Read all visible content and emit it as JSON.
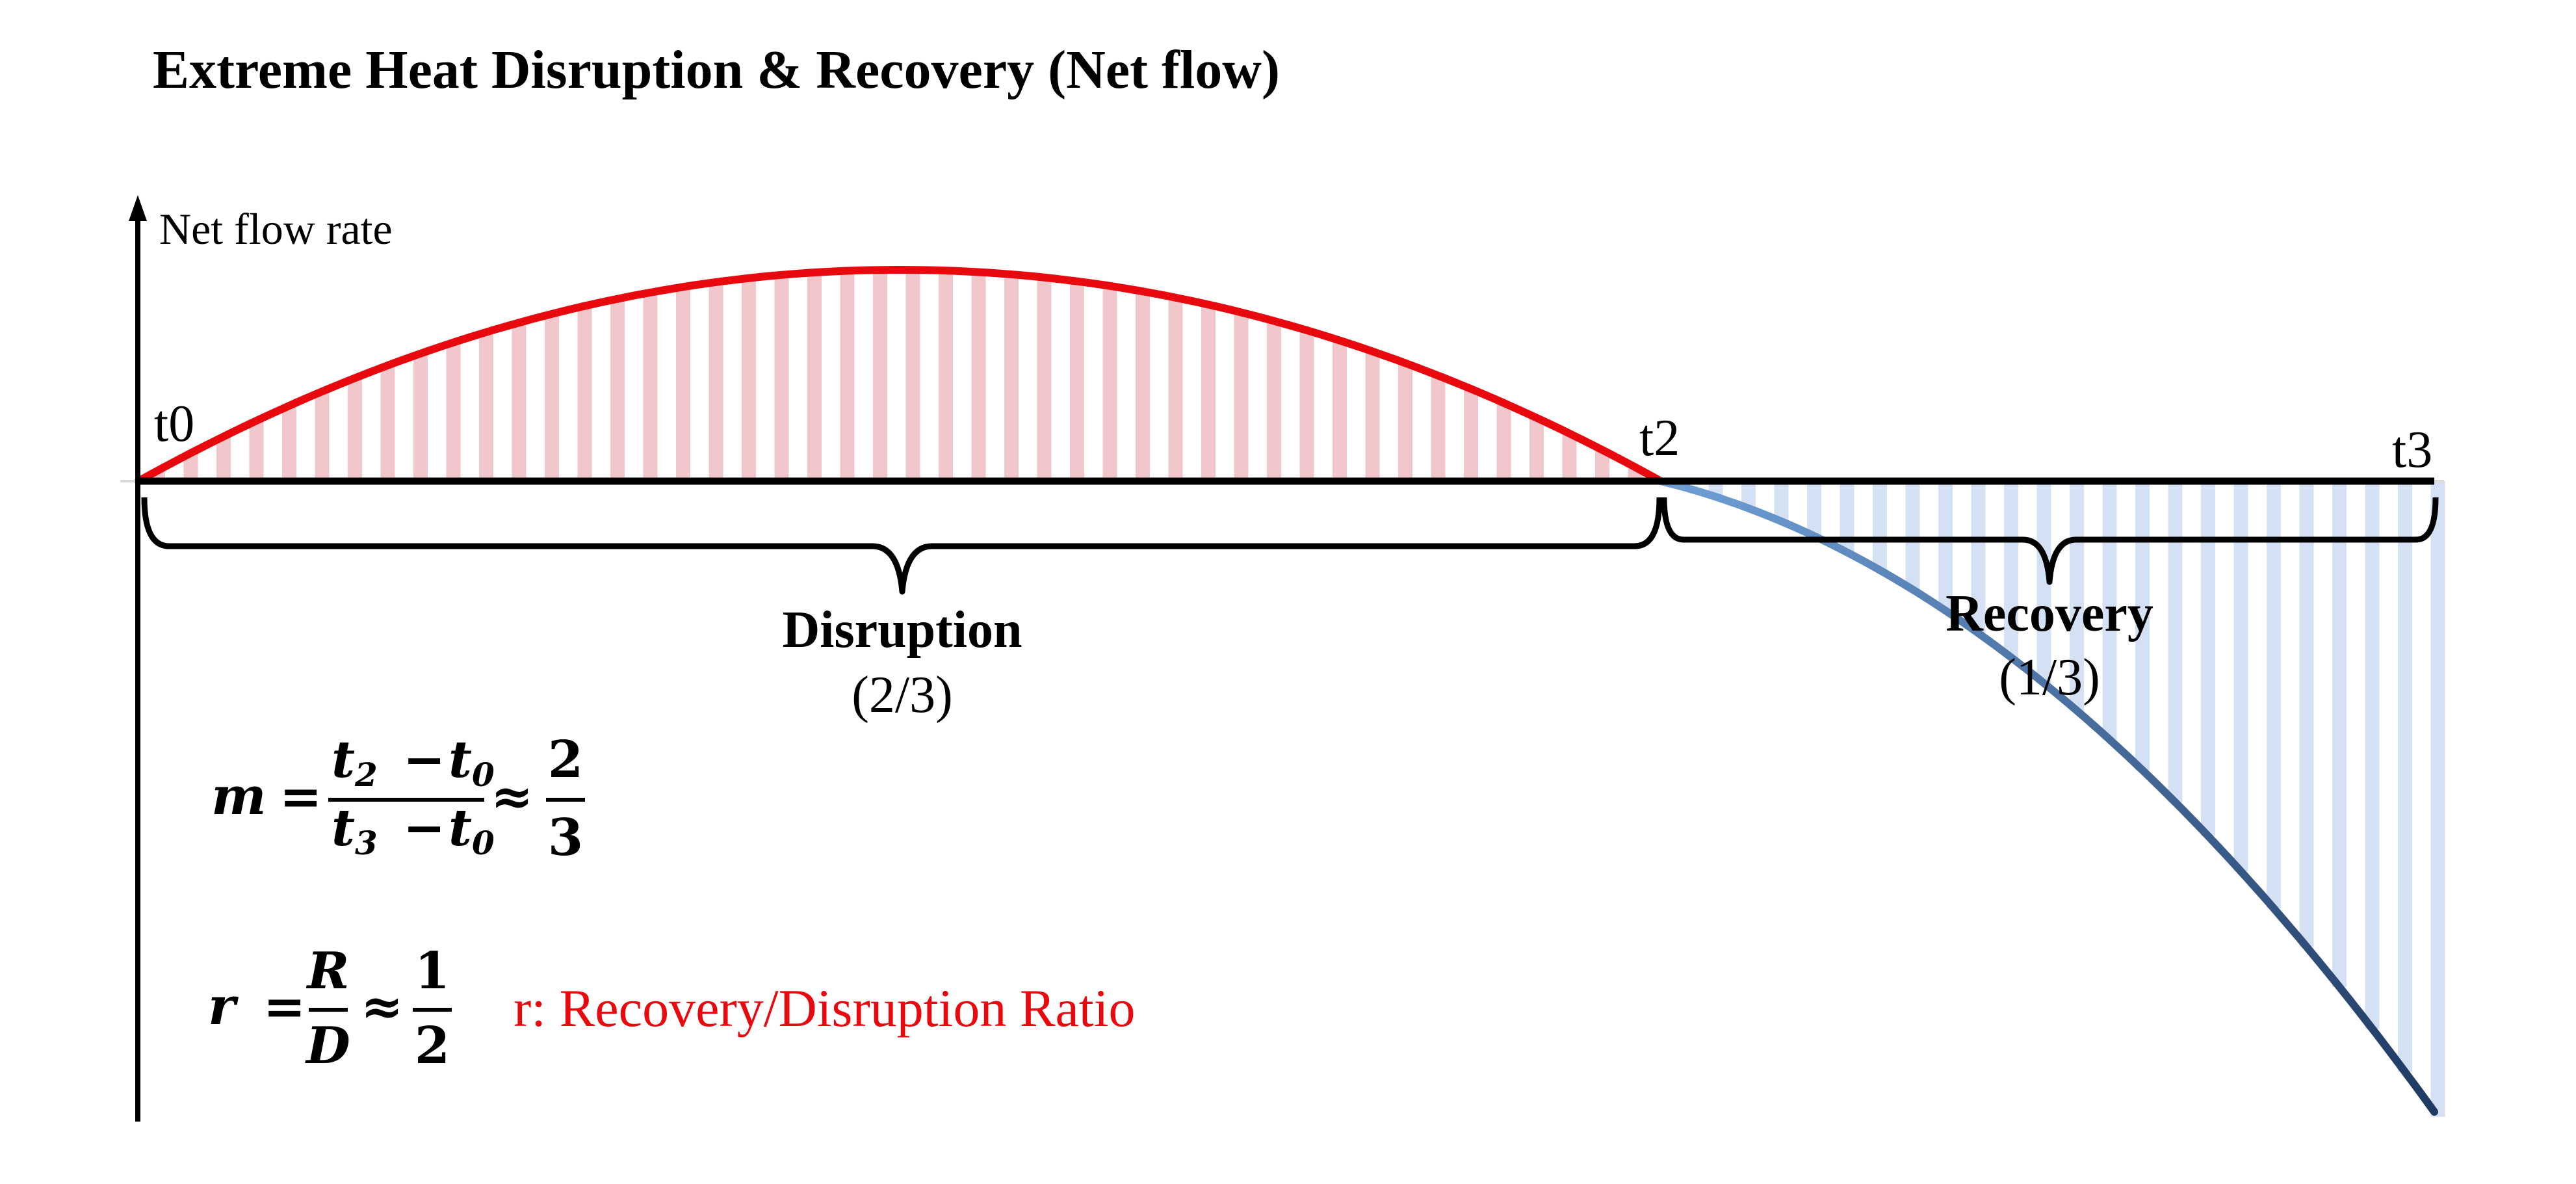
{
  "title": "Extreme Heat Disruption & Recovery (Net flow)",
  "y_axis_label": "Net flow rate",
  "time_labels": {
    "t0": "t0",
    "t2": "t2",
    "t3": "t3"
  },
  "phases": {
    "disruption": {
      "label": "Disruption",
      "fraction": "(2/3)"
    },
    "recovery": {
      "label": "Recovery",
      "fraction": "(1/3)"
    }
  },
  "formula_m": {
    "lhs": "m",
    "num_a": "t",
    "num_a_sub": "2",
    "num_b": "t",
    "num_b_sub": "0",
    "den_a": "t",
    "den_a_sub": "3",
    "den_b": "t",
    "den_b_sub": "0",
    "minus": "−",
    "equals": "=",
    "approx": "≈",
    "result_num": "2",
    "result_den": "3"
  },
  "formula_r": {
    "lhs": "r",
    "num": "R",
    "den": "D",
    "equals": "=",
    "approx": "≈",
    "result_num": "1",
    "result_den": "2"
  },
  "ratio_note": "r: Recovery/Disruption Ratio",
  "colors": {
    "disruption_curve": "#e8090f",
    "disruption_fill": "#f2c7cb",
    "recovery_curve_start": "#6f9fd6",
    "recovery_curve_end": "#1f3a63",
    "recovery_fill": "#d4e0f3",
    "note": "#e8090f"
  },
  "chart_data": {
    "type": "area",
    "x_ticks": [
      "t0",
      "t2",
      "t3"
    ],
    "disruption_span": "(2/3)",
    "recovery_span": "(1/3)"
  }
}
